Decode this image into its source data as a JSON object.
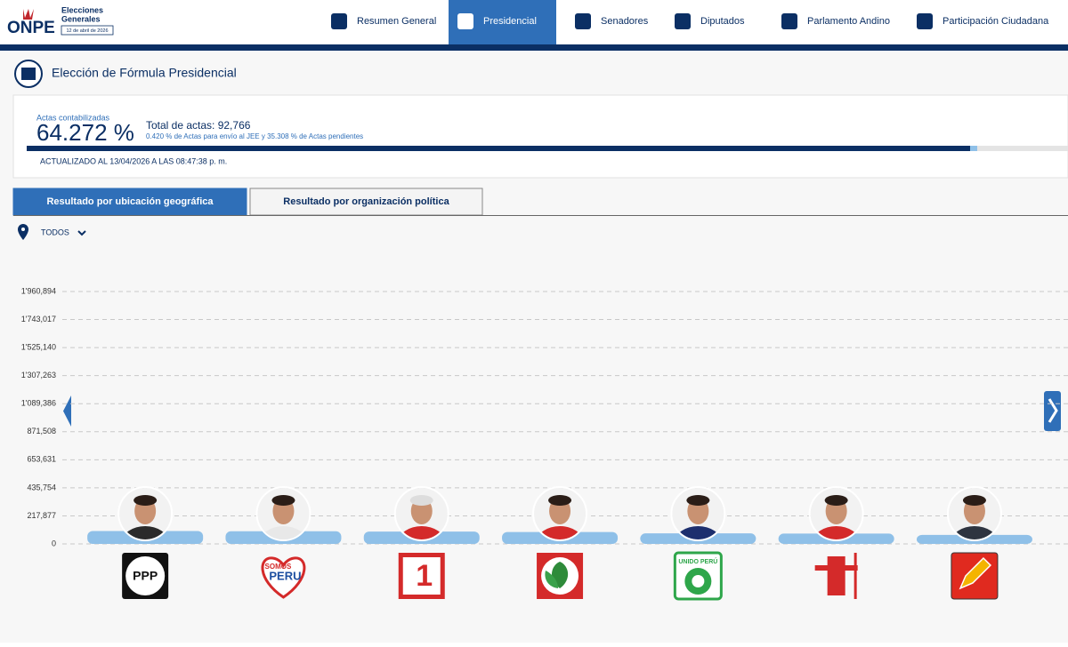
{
  "header": {
    "logo": "ONPE",
    "event": [
      "Elecciones",
      "Generales"
    ],
    "date": "12 de abril de 2026"
  },
  "nav": [
    "Resumen General",
    "Presidencial",
    "Senadores",
    "Diputados",
    "Parlamento Andino",
    "Participación Ciudadana"
  ],
  "nav_active": 1,
  "page_title": "Elección de Fórmula Presidencial",
  "summary": {
    "actas_label": "Actas contabilizadas",
    "actas_percent": "64.272 %",
    "total": "Total de actas: 92,766",
    "detail": "0.420 % de Actas para envío al JEE y 35.308 % de Actas pendientes",
    "updated": "ACTUALIZADO AL 13/04/2026 A LAS 08:47:38 p. m."
  },
  "tabs": [
    "Resultado por ubicación geográfica",
    "Resultado por organización política"
  ],
  "tab_active": 0,
  "filter": "TODOS",
  "chart": {
    "type": "bar",
    "color": "#8fc0e8",
    "grid": true,
    "ylim": [
      0,
      1960894
    ],
    "yticks": [
      0,
      {
        "value": 217877,
        "label": "217,877"
      },
      {
        "value": 435754,
        "label": "435,754"
      },
      {
        "value": 653631,
        "label": "653,631"
      },
      {
        "value": 871508,
        "label": "871,508"
      },
      {
        "value": 1089386,
        "label": "1'089,386"
      },
      {
        "value": 1307263,
        "label": "1'307,263"
      },
      {
        "value": 1525140,
        "label": "1'525,140"
      },
      {
        "value": 1743017,
        "label": "1'743,017"
      },
      {
        "value": 1960894,
        "label": "1'960,894"
      }
    ],
    "values": [
      100000,
      98000,
      96000,
      92000,
      82000,
      80000,
      70000
    ]
  },
  "parties": [
    {
      "logo_text": [
        "PPP"
      ]
    },
    {
      "logo_text": [
        "SOMOS",
        "PERU"
      ]
    },
    {
      "logo_text": [
        "1"
      ]
    },
    {
      "logo_text": []
    },
    {
      "logo_text": [
        "UNIDO PERÚ"
      ]
    },
    {
      "logo_text": []
    },
    {
      "logo_text": []
    }
  ]
}
